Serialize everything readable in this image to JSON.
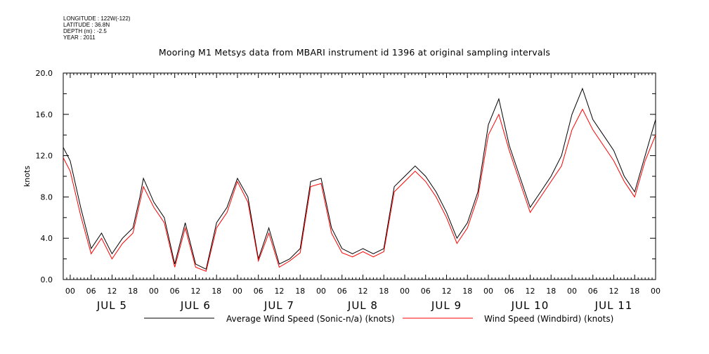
{
  "meta": {
    "longitude": "LONGITUDE : 122W(-122)",
    "latitude": "LATITUDE : 36.8N",
    "depth": "DEPTH (m) : -2.5",
    "year": "YEAR : 2011"
  },
  "chart_data": {
    "type": "line",
    "title": "Mooring M1 Metsys data from MBARI instrument id 1396 at original sampling intervals",
    "ylabel": "knots",
    "xlabel": "",
    "ylim": [
      0,
      20
    ],
    "yticks": [
      "0.0",
      "4.0",
      "8.0",
      "12.0",
      "16.0",
      "20.0"
    ],
    "xlim_hours": [
      -2,
      168
    ],
    "hour_tick_labels": [
      "00",
      "06",
      "12",
      "18"
    ],
    "day_labels": [
      "JUL 5",
      "JUL 6",
      "JUL 7",
      "JUL 8",
      "JUL 9",
      "JUL 10",
      "JUL 11"
    ],
    "grid": false,
    "legend_placement": "bottom",
    "series": [
      {
        "name": "Average Wind Speed (Sonic-n/a) (knots)",
        "color": "#000000",
        "x_unit": "hours from JUL 5 00",
        "x": [
          -2,
          0,
          3,
          6,
          9,
          12,
          15,
          18,
          20,
          21,
          24,
          27,
          30,
          33,
          36,
          39,
          42,
          45,
          48,
          51,
          54,
          57,
          60,
          63,
          66,
          69,
          72,
          75,
          78,
          81,
          84,
          87,
          90,
          93,
          96,
          99,
          102,
          105,
          108,
          111,
          114,
          117,
          120,
          123,
          126,
          129,
          132,
          135,
          138,
          141,
          144,
          147,
          150,
          153,
          156,
          159,
          162,
          165,
          168
        ],
        "y": [
          12.8,
          11.5,
          7.0,
          3.0,
          4.5,
          2.5,
          4.0,
          5.0,
          8.0,
          9.8,
          7.5,
          6.0,
          1.5,
          5.5,
          1.5,
          1.0,
          5.5,
          7.0,
          9.8,
          8.0,
          2.0,
          5.0,
          1.5,
          2.0,
          3.0,
          9.5,
          9.8,
          5.0,
          3.0,
          2.5,
          3.0,
          2.5,
          3.0,
          9.0,
          10.0,
          11.0,
          10.0,
          8.5,
          6.5,
          4.0,
          5.5,
          8.5,
          15.0,
          17.5,
          13.0,
          10.0,
          7.0,
          8.5,
          10.0,
          12.0,
          16.0,
          18.5,
          15.5,
          14.0,
          12.5,
          10.0,
          8.5,
          12.0,
          15.5
        ]
      },
      {
        "name": "Wind Speed (Windbird) (knots)",
        "color": "#ff0000",
        "x_unit": "hours from JUL 5 00",
        "x": [
          -2,
          0,
          3,
          6,
          9,
          12,
          15,
          18,
          20,
          21,
          24,
          27,
          30,
          33,
          36,
          39,
          42,
          45,
          48,
          51,
          54,
          57,
          60,
          63,
          66,
          69,
          72,
          75,
          78,
          81,
          84,
          87,
          90,
          93,
          96,
          99,
          102,
          105,
          108,
          111,
          114,
          117,
          120,
          123,
          126,
          129,
          132,
          135,
          138,
          141,
          144,
          147,
          150,
          153,
          156,
          159,
          162,
          165,
          168
        ],
        "y": [
          11.8,
          10.5,
          6.2,
          2.5,
          4.0,
          2.0,
          3.5,
          4.5,
          7.5,
          9.0,
          7.0,
          5.5,
          1.2,
          5.0,
          1.2,
          0.8,
          5.0,
          6.5,
          9.5,
          7.5,
          1.8,
          4.5,
          1.2,
          1.8,
          2.6,
          9.0,
          9.3,
          4.5,
          2.6,
          2.2,
          2.7,
          2.2,
          2.7,
          8.5,
          9.5,
          10.5,
          9.5,
          8.0,
          6.0,
          3.5,
          5.0,
          8.0,
          14.0,
          16.0,
          12.5,
          9.5,
          6.5,
          8.0,
          9.5,
          11.0,
          14.5,
          16.5,
          14.5,
          13.0,
          11.5,
          9.5,
          8.0,
          11.5,
          14.0
        ]
      }
    ]
  }
}
